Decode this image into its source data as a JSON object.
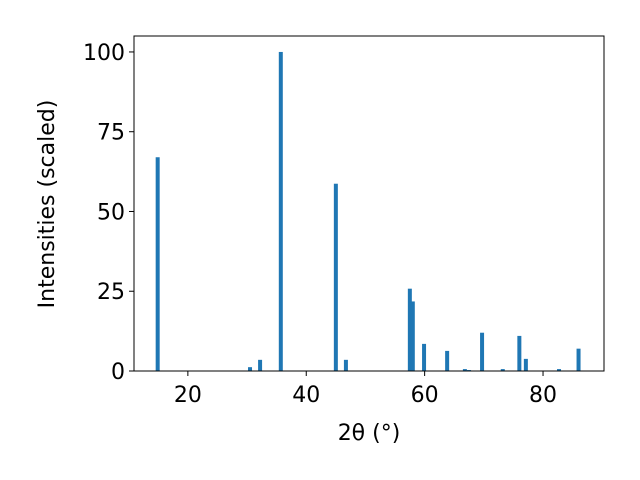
{
  "chart_data": {
    "type": "bar",
    "xlabel": "2θ (°)",
    "ylabel": "Intensities (scaled)",
    "x": [
      14.9,
      30.5,
      32.2,
      35.7,
      45.0,
      46.7,
      57.5,
      58.0,
      59.9,
      63.8,
      66.8,
      67.5,
      69.7,
      73.2,
      76.0,
      77.1,
      82.7,
      86.0
    ],
    "values": [
      67,
      1.2,
      3.5,
      100,
      58.7,
      3.5,
      25.8,
      21.8,
      8.5,
      6.3,
      0.6,
      0.3,
      12,
      0.6,
      11,
      3.8,
      0.6,
      7
    ],
    "color": "#1f77b4",
    "xlim": [
      10.9,
      90.3
    ],
    "xticks": [
      20,
      40,
      60,
      80
    ],
    "ylim": [
      0,
      105
    ],
    "yticks": [
      0,
      25,
      50,
      75,
      100
    ]
  }
}
